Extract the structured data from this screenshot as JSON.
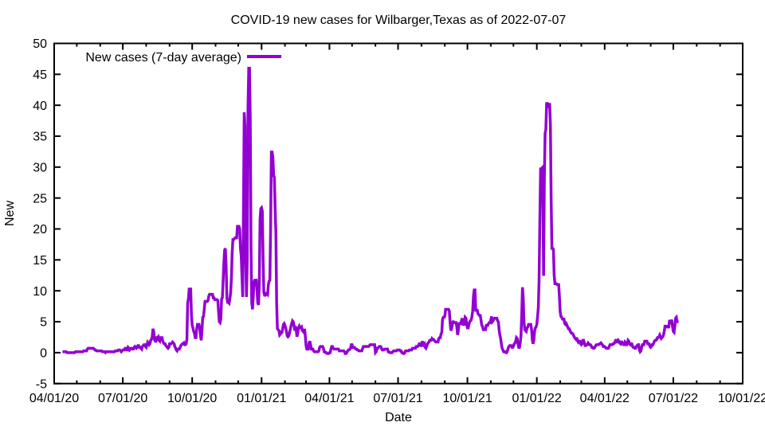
{
  "chart_data": {
    "type": "line",
    "title": "COVID-19 new cases for Wilbarger,Texas as of 2022-07-07",
    "xlabel": "Date",
    "ylabel": "New",
    "legend": [
      "New cases (7-day average)"
    ],
    "legend_position": "top-left-inside",
    "grid": false,
    "line_color": "#9400d3",
    "background_color": "#ffffff",
    "border_color": "#000000",
    "x_range": [
      "2020-04-01",
      "2022-10-01"
    ],
    "ylim": [
      -5,
      50
    ],
    "y_ticks": [
      "-5",
      "0",
      "5",
      "10",
      "15",
      "20",
      "25",
      "30",
      "35",
      "40",
      "45",
      "50"
    ],
    "x_tick_labels": [
      "04/01/20",
      "07/01/20",
      "10/01/20",
      "01/01/21",
      "04/01/21",
      "07/01/21",
      "10/01/21",
      "01/01/22",
      "04/01/22",
      "07/01/22",
      "10/01/22"
    ],
    "x_minor_ticks": "monthly",
    "series_start_date": "2020-04-12",
    "series_name": "New cases (7-day average)",
    "values": [
      0.143,
      0.143,
      0.143,
      0.143,
      0.143,
      0.143,
      0.0,
      0.0,
      0.0,
      0.0,
      0.0,
      0.0,
      0.0,
      0.0,
      0.0,
      0.0,
      0.0,
      0.143,
      0.143,
      0.143,
      0.143,
      0.143,
      0.143,
      0.143,
      0.143,
      0.143,
      0.143,
      0.143,
      0.286,
      0.286,
      0.286,
      0.286,
      0.286,
      0.571,
      0.714,
      0.714,
      0.714,
      0.714,
      0.714,
      0.714,
      0.714,
      0.714,
      0.571,
      0.429,
      0.429,
      0.286,
      0.286,
      0.286,
      0.286,
      0.286,
      0.286,
      0.286,
      0.286,
      0.143,
      0.143,
      0.143,
      0.143,
      0.0,
      0.143,
      0.143,
      0.143,
      0.143,
      0.143,
      0.143,
      0.143,
      0.143,
      0.143,
      0.143,
      0.143,
      0.143,
      0.286,
      0.286,
      0.286,
      0.286,
      0.429,
      0.429,
      0.429,
      0.286,
      0.143,
      0.286,
      0.429,
      0.429,
      0.429,
      0.714,
      0.714,
      0.429,
      0.429,
      0.857,
      0.714,
      0.429,
      0.571,
      0.714,
      0.714,
      0.571,
      0.571,
      0.857,
      1.0,
      0.857,
      0.714,
      0.857,
      1.143,
      1.143,
      0.857,
      0.857,
      0.714,
      0.571,
      1.0,
      1.143,
      1.286,
      1.286,
      1.0,
      0.857,
      1.286,
      1.714,
      1.571,
      1.286,
      1.429,
      2.0,
      2.143,
      2.571,
      3.857,
      3.429,
      2.143,
      1.857,
      1.857,
      2.429,
      2.429,
      2.571,
      2.0,
      1.857,
      2.429,
      2.429,
      2.429,
      1.857,
      1.571,
      1.429,
      1.429,
      1.143,
      1.0,
      0.857,
      0.714,
      0.857,
      1.429,
      1.429,
      1.429,
      1.571,
      1.714,
      1.571,
      1.429,
      1.0,
      0.714,
      0.429,
      0.286,
      0.571,
      0.571,
      0.571,
      0.857,
      1.143,
      1.286,
      1.429,
      1.429,
      1.571,
      1.286,
      1.286,
      1.429,
      2.143,
      8.0,
      8.714,
      10.286,
      10.286,
      10.286,
      6.143,
      4.429,
      4.0,
      3.429,
      3.143,
      2.429,
      2.429,
      3.857,
      4.571,
      4.571,
      4.571,
      4.0,
      2.714,
      2.0,
      3.714,
      5.714,
      5.857,
      7.0,
      8.286,
      8.286,
      8.286,
      8.286,
      8.429,
      9.143,
      9.429,
      9.429,
      9.429,
      9.429,
      9.429,
      8.857,
      8.857,
      8.571,
      8.571,
      8.571,
      8.571,
      8.429,
      6.571,
      5.0,
      4.857,
      5.429,
      8.714,
      8.857,
      11.571,
      14.429,
      16.571,
      16.857,
      14.0,
      8.857,
      8.143,
      8.143,
      8.0,
      8.714,
      9.714,
      12.0,
      16.143,
      18.286,
      18.286,
      18.429,
      18.571,
      18.571,
      18.571,
      20.429,
      20.429,
      20.429,
      20.0,
      16.857,
      15.714,
      12.286,
      9.0,
      23.143,
      38.857,
      36.714,
      15.143,
      9.0,
      14.857,
      39.714,
      46.0,
      46.0,
      37.857,
      16.857,
      8.0,
      7.0,
      9.0,
      11.429,
      11.714,
      11.714,
      11.714,
      10.0,
      8.0,
      7.714,
      11.143,
      21.571,
      23.286,
      23.429,
      22.857,
      15.143,
      9.714,
      9.286,
      9.286,
      9.571,
      9.571,
      9.429,
      11.0,
      11.571,
      11.714,
      20.286,
      32.429,
      32.429,
      31.571,
      28.714,
      28.286,
      23.286,
      19.429,
      8.0,
      3.857,
      3.714,
      3.571,
      2.857,
      3.0,
      3.286,
      3.286,
      3.857,
      4.571,
      4.714,
      4.429,
      4.0,
      3.429,
      2.714,
      2.571,
      2.714,
      3.143,
      3.714,
      4.286,
      4.714,
      5.143,
      5.0,
      4.429,
      3.571,
      4.286,
      3.571,
      2.571,
      3.143,
      4.0,
      4.286,
      4.0,
      4.0,
      4.143,
      3.571,
      3.429,
      3.286,
      3.857,
      2.714,
      1.143,
      0.571,
      0.571,
      0.571,
      1.571,
      1.857,
      1.286,
      0.571,
      0.571,
      0.571,
      0.286,
      0.143,
      0.143,
      0.143,
      0.143,
      0.143,
      0.143,
      0.286,
      0.857,
      1.0,
      1.0,
      1.0,
      1.0,
      0.714,
      0.143,
      0.143,
      0.0,
      0.0,
      -0.143,
      -0.143,
      -0.143,
      0.0,
      0.0,
      0.571,
      1.0,
      1.0,
      0.714,
      0.571,
      0.571,
      0.571,
      0.571,
      0.571,
      0.571,
      0.571,
      0.286,
      0.286,
      0.286,
      0.286,
      0.286,
      0.286,
      0.286,
      0.143,
      -0.143,
      -0.143,
      0.0,
      0.286,
      0.429,
      0.429,
      0.571,
      0.714,
      1.286,
      1.286,
      0.857,
      0.857,
      0.857,
      0.714,
      0.571,
      0.571,
      0.429,
      0.429,
      0.286,
      0.286,
      0.286,
      0.286,
      0.286,
      0.714,
      1.0,
      1.0,
      1.0,
      1.0,
      1.0,
      1.0,
      1.0,
      1.0,
      1.143,
      1.286,
      1.286,
      1.286,
      1.286,
      1.286,
      1.286,
      1.286,
      0.0,
      0.143,
      0.714,
      0.714,
      0.857,
      1.0,
      1.0,
      1.0,
      0.714,
      0.429,
      0.429,
      0.429,
      0.571,
      0.571,
      0.571,
      0.571,
      0.571,
      0.143,
      0.143,
      0.0,
      0.0,
      0.0,
      0.0,
      0.143,
      0.286,
      0.286,
      0.286,
      0.286,
      0.286,
      0.429,
      0.429,
      0.429,
      0.429,
      0.286,
      0.286,
      0.0,
      0.0,
      -0.143,
      -0.143,
      0.0,
      0.286,
      0.286,
      0.286,
      0.286,
      0.286,
      0.429,
      0.429,
      0.429,
      0.429,
      0.714,
      0.714,
      0.714,
      0.714,
      0.714,
      1.0,
      1.0,
      1.0,
      1.143,
      1.429,
      1.429,
      1.143,
      1.143,
      1.857,
      1.571,
      1.286,
      1.429,
      0.857,
      0.714,
      1.0,
      1.429,
      1.571,
      1.714,
      2.0,
      2.0,
      2.0,
      2.286,
      2.143,
      2.143,
      2.0,
      1.857,
      1.714,
      1.714,
      1.714,
      1.714,
      2.286,
      2.429,
      2.429,
      3.0,
      3.286,
      5.429,
      5.714,
      5.714,
      5.857,
      7.0,
      7.0,
      7.0,
      7.0,
      7.0,
      6.714,
      4.857,
      3.571,
      3.857,
      4.571,
      5.143,
      4.857,
      4.857,
      4.857,
      4.857,
      4.143,
      2.857,
      3.714,
      4.714,
      4.714,
      4.714,
      5.143,
      5.571,
      4.571,
      4.571,
      4.571,
      5.714,
      5.571,
      4.571,
      4.0,
      4.0,
      4.571,
      5.0,
      5.143,
      5.286,
      5.857,
      6.714,
      9.143,
      10.143,
      10.143,
      6.857,
      6.857,
      6.857,
      6.286,
      6.143,
      6.0,
      6.0,
      5.286,
      4.429,
      4.286,
      3.714,
      3.714,
      3.714,
      3.714,
      4.429,
      4.429,
      4.429,
      4.714,
      4.857,
      4.857,
      5.286,
      5.857,
      5.0,
      5.143,
      5.429,
      5.571,
      5.571,
      5.571,
      5.571,
      5.143,
      5.0,
      3.714,
      2.857,
      2.286,
      1.429,
      0.714,
      0.429,
      0.143,
      0.143,
      0.143,
      0.0,
      0.0,
      0.286,
      0.714,
      1.0,
      1.143,
      1.143,
      1.143,
      0.857,
      0.857,
      1.0,
      1.429,
      1.571,
      1.857,
      2.429,
      2.286,
      1.429,
      0.857,
      0.857,
      1.571,
      2.714,
      6.143,
      10.571,
      8.857,
      5.0,
      3.714,
      3.571,
      3.429,
      4.0,
      4.143,
      4.571,
      4.571,
      4.571,
      4.571,
      3.857,
      2.143,
      1.429,
      2.0,
      3.429,
      4.0,
      4.143,
      4.571,
      5.857,
      7.286,
      11.714,
      21.143,
      29.714,
      29.714,
      29.857,
      26.0,
      12.429,
      28.286,
      35.429,
      36.143,
      40.286,
      40.286,
      39.571,
      40.143,
      40.143,
      36.857,
      24.857,
      16.857,
      16.857,
      16.714,
      12.571,
      11.143,
      11.143,
      11.143,
      11.0,
      11.0,
      11.0,
      9.0,
      6.571,
      5.857,
      5.714,
      5.429,
      5.429,
      5.429,
      4.714,
      4.571,
      4.714,
      4.429,
      4.143,
      3.857,
      3.857,
      3.571,
      3.286,
      3.143,
      3.143,
      3.0,
      2.714,
      2.429,
      2.286,
      2.143,
      2.429,
      2.0,
      1.714,
      1.857,
      1.857,
      1.429,
      1.286,
      1.429,
      2.0,
      2.0,
      1.571,
      1.143,
      1.143,
      1.286,
      1.286,
      1.571,
      1.429,
      1.286,
      1.286,
      1.143,
      0.857,
      0.857,
      0.714,
      0.714,
      0.857,
      1.143,
      1.286,
      1.286,
      1.286,
      1.286,
      1.429,
      1.429,
      1.571,
      1.429,
      1.286,
      1.0,
      1.0,
      1.0,
      0.857,
      0.714,
      0.714,
      0.714,
      0.714,
      1.0,
      1.286,
      1.286,
      1.286,
      1.286,
      1.429,
      1.429,
      1.571,
      1.857,
      2.143,
      1.714,
      1.714,
      2.0,
      1.857,
      1.571,
      1.429,
      1.714,
      1.714,
      1.429,
      1.286,
      1.286,
      1.714,
      1.571,
      1.143,
      1.429,
      2.0,
      1.857,
      1.429,
      1.286,
      1.429,
      1.429,
      1.0,
      0.857,
      0.857,
      0.714,
      0.714,
      1.0,
      1.143,
      1.286,
      1.286,
      0.429,
      0.143,
      0.286,
      0.857,
      1.286,
      1.286,
      1.286,
      1.857,
      1.857,
      1.857,
      1.857,
      1.429,
      1.429,
      1.429,
      1.0,
      0.857,
      1.0,
      1.286,
      1.286,
      1.571,
      1.857,
      2.0,
      2.0,
      2.143,
      2.429,
      2.429,
      2.571,
      2.857,
      2.571,
      2.286,
      2.429,
      2.571,
      2.857,
      3.429,
      4.286,
      4.286,
      4.286,
      4.143,
      4.143,
      4.143,
      5.286,
      4.714,
      5.143,
      5.143,
      4.143,
      3.429,
      3.286,
      4.286,
      5.571,
      5.714,
      5.0,
      5.0,
      5.0
    ]
  }
}
